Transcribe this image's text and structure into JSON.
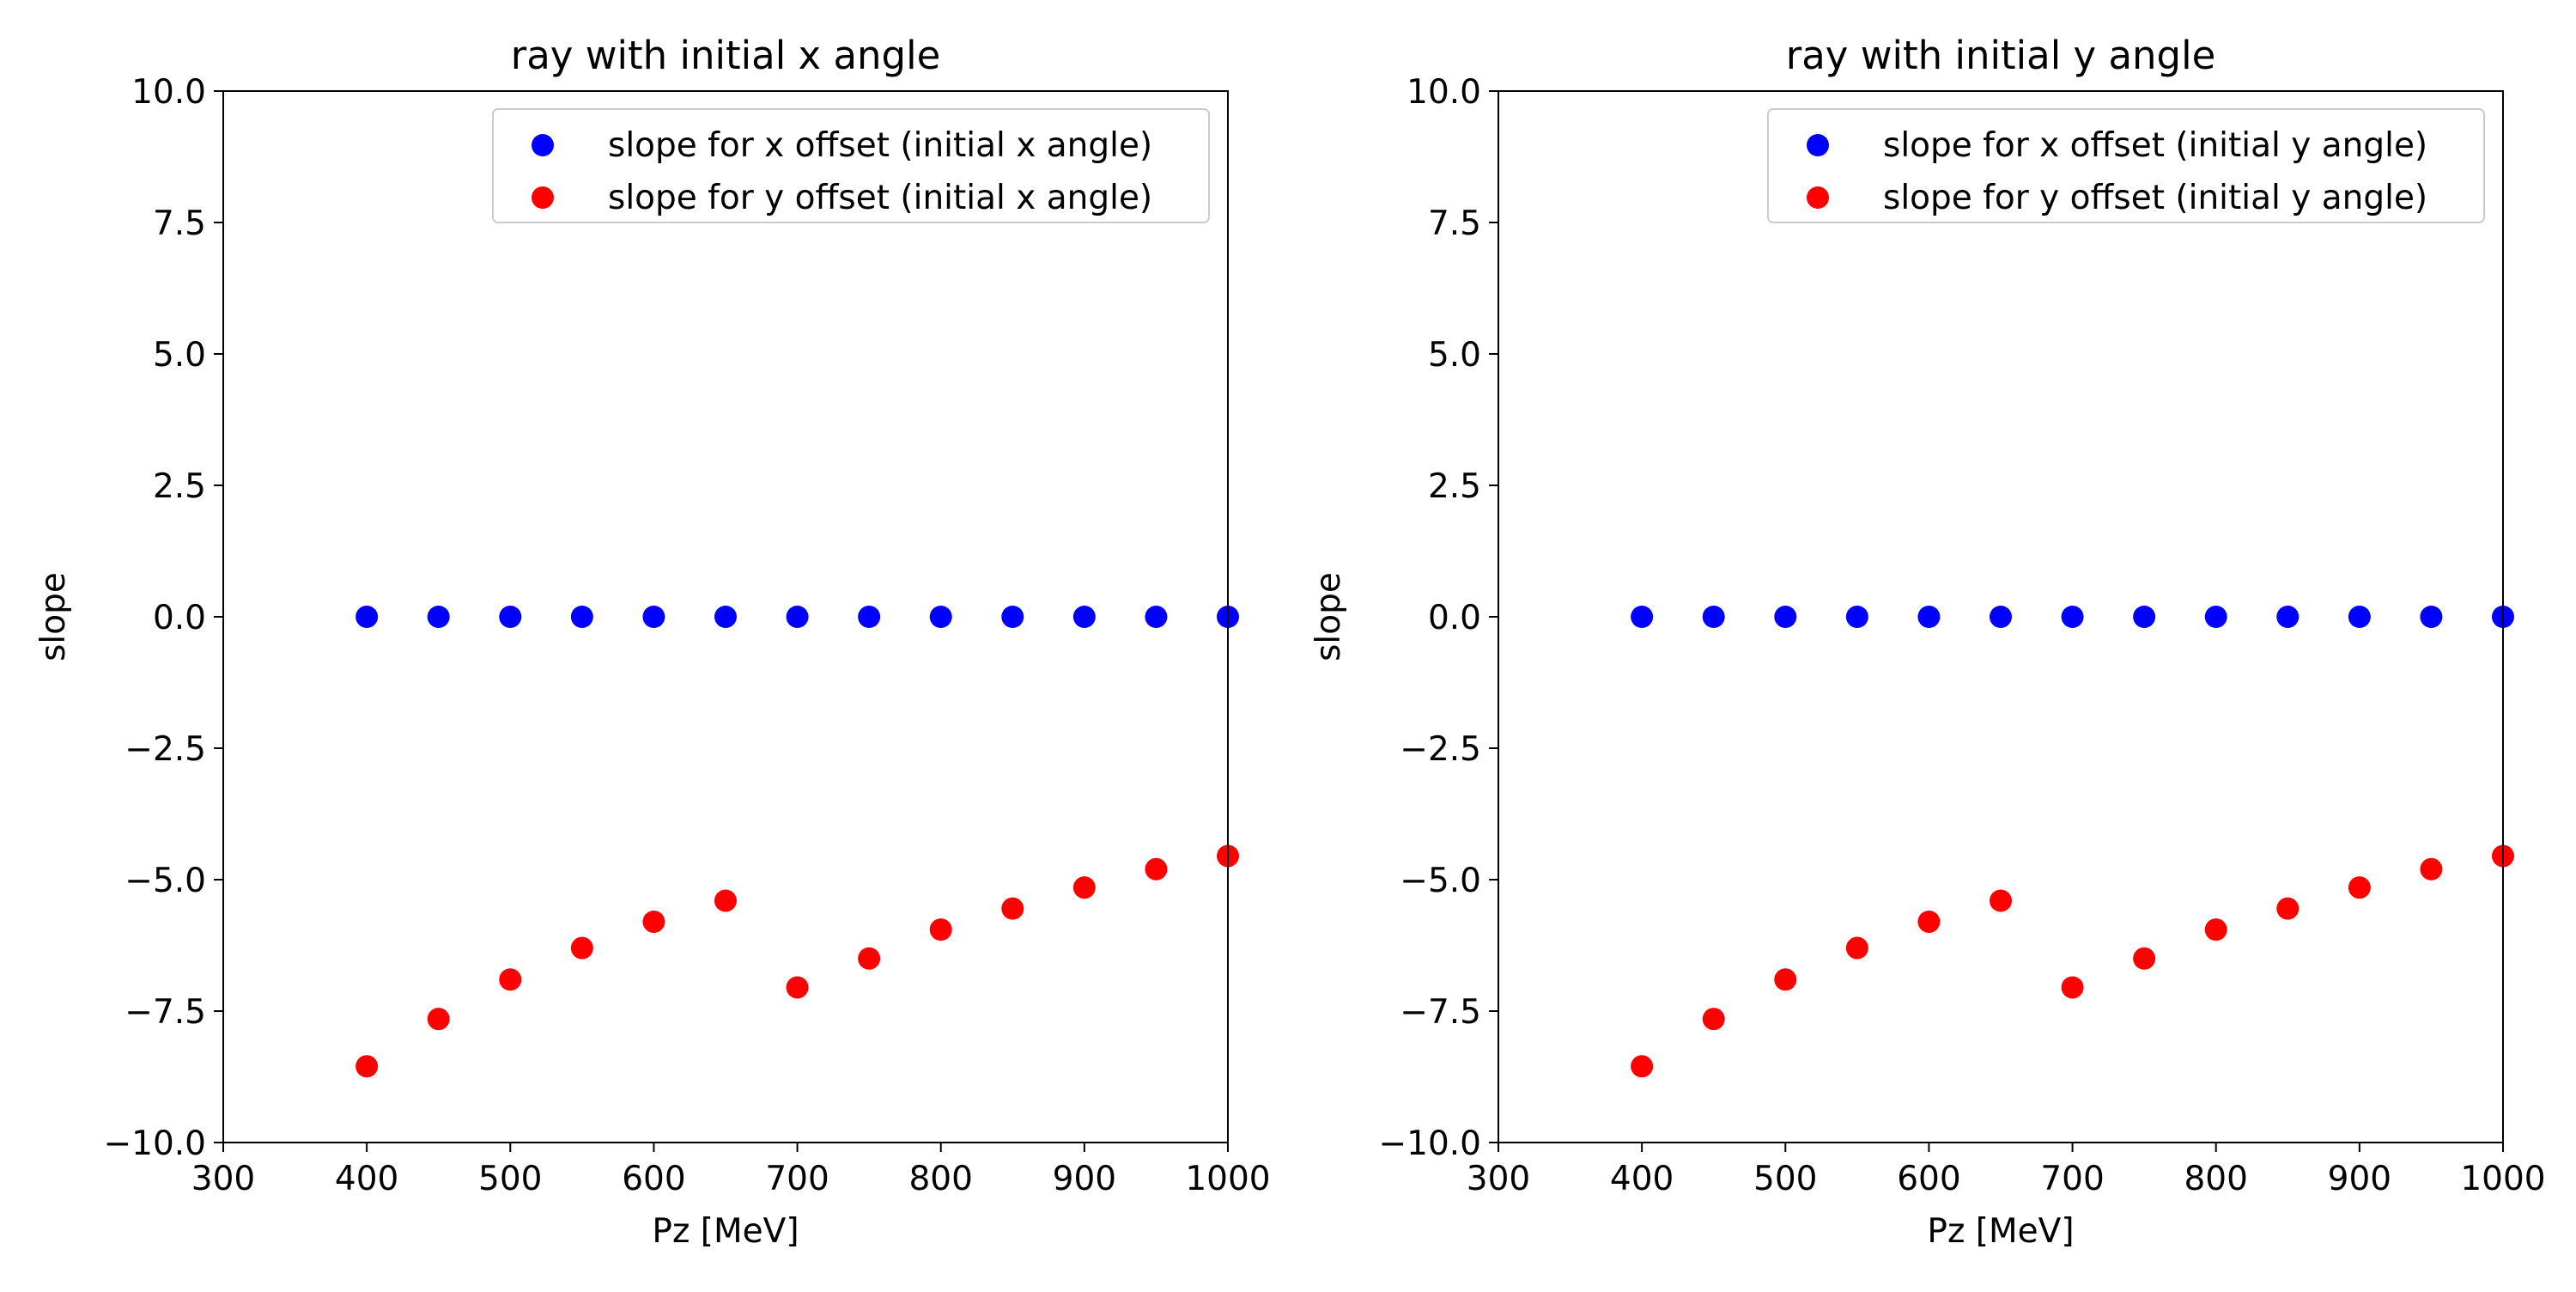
{
  "chart_data": [
    {
      "type": "scatter",
      "title": "ray with initial x angle",
      "xlabel": "Pz [MeV]",
      "ylabel": "slope",
      "xlim": [
        300,
        1000
      ],
      "ylim": [
        -10,
        10
      ],
      "xticks": [
        "300",
        "400",
        "500",
        "600",
        "700",
        "800",
        "900",
        "1000"
      ],
      "yticks": [
        "10.0",
        "7.5",
        "5.0",
        "2.5",
        "0.0",
        "−2.5",
        "−5.0",
        "−7.5",
        "−10.0"
      ],
      "grid": false,
      "legend_position": "top-right",
      "x": [
        400,
        450,
        500,
        550,
        600,
        650,
        700,
        750,
        800,
        850,
        900,
        950,
        1000
      ],
      "series": [
        {
          "name": "slope for x offset (initial x angle)",
          "color": "#0000ff",
          "values": [
            0.0,
            0.0,
            0.0,
            0.0,
            0.0,
            0.0,
            0.0,
            0.0,
            0.0,
            0.0,
            0.0,
            0.0,
            0.0
          ]
        },
        {
          "name": "slope for y offset (initial x angle)",
          "color": "#ff0000",
          "values": [
            -8.55,
            -7.65,
            -6.9,
            -6.3,
            -5.8,
            -5.4,
            -7.05,
            -6.5,
            -5.95,
            -5.55,
            -5.15,
            -4.8,
            -4.55
          ]
        }
      ]
    },
    {
      "type": "scatter",
      "title": "ray with initial y angle",
      "xlabel": "Pz [MeV]",
      "ylabel": "slope",
      "xlim": [
        300,
        1000
      ],
      "ylim": [
        -10,
        10
      ],
      "xticks": [
        "300",
        "400",
        "500",
        "600",
        "700",
        "800",
        "900",
        "1000"
      ],
      "yticks": [
        "10.0",
        "7.5",
        "5.0",
        "2.5",
        "0.0",
        "−2.5",
        "−5.0",
        "−7.5",
        "−10.0"
      ],
      "grid": false,
      "legend_position": "top-right",
      "x": [
        400,
        450,
        500,
        550,
        600,
        650,
        700,
        750,
        800,
        850,
        900,
        950,
        1000
      ],
      "series": [
        {
          "name": "slope for x offset (initial y angle)",
          "color": "#0000ff",
          "values": [
            0.0,
            0.0,
            0.0,
            0.0,
            0.0,
            0.0,
            0.0,
            0.0,
            0.0,
            0.0,
            0.0,
            0.0,
            0.0
          ]
        },
        {
          "name": "slope for y offset (initial y angle)",
          "color": "#ff0000",
          "values": [
            -8.55,
            -7.65,
            -6.9,
            -6.3,
            -5.8,
            -5.4,
            -7.05,
            -6.5,
            -5.95,
            -5.55,
            -5.15,
            -4.8,
            -4.55
          ]
        }
      ]
    }
  ]
}
